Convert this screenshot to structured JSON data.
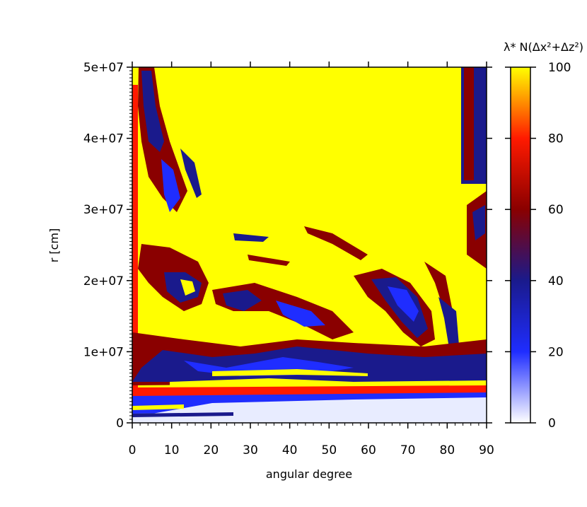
{
  "chart_data": {
    "type": "heatmap",
    "title": "",
    "xlabel": "angular degree",
    "ylabel": "r [cm]",
    "xlim": [
      0,
      90
    ],
    "ylim": [
      0,
      50000000
    ],
    "x_ticks": [
      "0",
      "10",
      "20",
      "30",
      "40",
      "50",
      "60",
      "70",
      "80",
      "90"
    ],
    "y_ticks": [
      "0",
      "1e+07",
      "2e+07",
      "3e+07",
      "4e+07",
      "5e+07"
    ],
    "colorbar": {
      "label": "λ* N(Δx²+Δz²)",
      "range": [
        0,
        100
      ],
      "ticks": [
        "0",
        "20",
        "40",
        "60",
        "80",
        "100"
      ],
      "colormap_stops": [
        {
          "value": 0,
          "color": "#ffffff"
        },
        {
          "value": 20,
          "color": "#1f2dff"
        },
        {
          "value": 40,
          "color": "#1a1a8c"
        },
        {
          "value": 60,
          "color": "#8a0000"
        },
        {
          "value": 80,
          "color": "#ff1a00"
        },
        {
          "value": 100,
          "color": "#ffff00"
        }
      ]
    },
    "description_values": {
      "background_value": 100,
      "turbulent_region_range": [
        0,
        100
      ]
    }
  }
}
